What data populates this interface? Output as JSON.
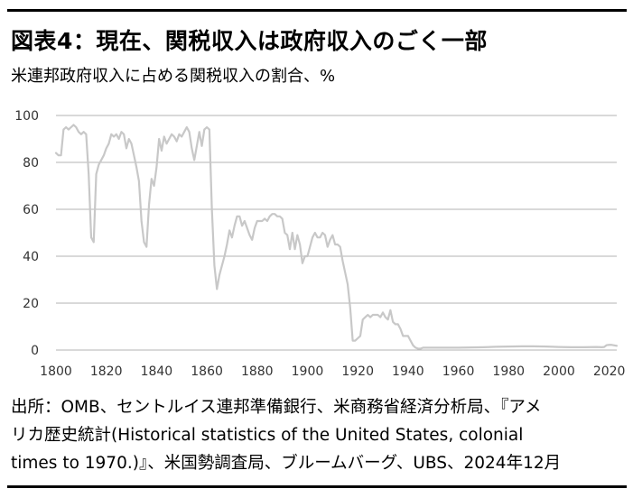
{
  "header": {
    "title": "図表4：現在、関税収入は政府収入のごく一部",
    "subtitle": "米連邦政府収入に占める関税収入の割合、%"
  },
  "footer": {
    "source_lines": [
      "出所：OMB、セントルイス連邦準備銀行、米商務省経済分析局、『アメ",
      "リカ歴史統計(Historical statistics of the United States, colonial",
      "times to 1970.)』、米国勢調査局、ブルームバーグ、UBS、2024年12月"
    ]
  },
  "colors": {
    "line": "#c8c8c8",
    "grid": "#b3b3b3",
    "axis_text": "#333333",
    "rule": "#000000"
  },
  "chart_data": {
    "type": "line",
    "title": "",
    "xlabel": "",
    "ylabel": "",
    "xlim": [
      1800,
      2023
    ],
    "ylim": [
      0,
      100
    ],
    "x_ticks": [
      1800,
      1820,
      1840,
      1860,
      1880,
      1900,
      1920,
      1940,
      1960,
      1980,
      2000,
      2020
    ],
    "y_ticks": [
      0,
      20,
      40,
      60,
      80,
      100
    ],
    "grid": true,
    "legend": "none",
    "series": [
      {
        "name": "",
        "points": [
          [
            1800,
            84
          ],
          [
            1801,
            83
          ],
          [
            1802,
            83
          ],
          [
            1803,
            94
          ],
          [
            1804,
            95
          ],
          [
            1805,
            94
          ],
          [
            1806,
            95
          ],
          [
            1807,
            96
          ],
          [
            1808,
            95
          ],
          [
            1809,
            93
          ],
          [
            1810,
            92
          ],
          [
            1811,
            93
          ],
          [
            1812,
            92
          ],
          [
            1813,
            75
          ],
          [
            1814,
            48
          ],
          [
            1815,
            46
          ],
          [
            1816,
            75
          ],
          [
            1817,
            79
          ],
          [
            1818,
            81
          ],
          [
            1819,
            83
          ],
          [
            1820,
            86
          ],
          [
            1821,
            88
          ],
          [
            1822,
            92
          ],
          [
            1823,
            91
          ],
          [
            1824,
            92
          ],
          [
            1825,
            90
          ],
          [
            1826,
            93
          ],
          [
            1827,
            92
          ],
          [
            1828,
            86
          ],
          [
            1829,
            90
          ],
          [
            1830,
            88
          ],
          [
            1831,
            83
          ],
          [
            1832,
            78
          ],
          [
            1833,
            72
          ],
          [
            1834,
            55
          ],
          [
            1835,
            46
          ],
          [
            1836,
            44
          ],
          [
            1837,
            62
          ],
          [
            1838,
            73
          ],
          [
            1839,
            70
          ],
          [
            1840,
            78
          ],
          [
            1841,
            90
          ],
          [
            1842,
            85
          ],
          [
            1843,
            91
          ],
          [
            1844,
            88
          ],
          [
            1845,
            90
          ],
          [
            1846,
            92
          ],
          [
            1847,
            91
          ],
          [
            1848,
            89
          ],
          [
            1849,
            92
          ],
          [
            1850,
            91
          ],
          [
            1851,
            93
          ],
          [
            1852,
            95
          ],
          [
            1853,
            93
          ],
          [
            1854,
            86
          ],
          [
            1855,
            81
          ],
          [
            1856,
            87
          ],
          [
            1857,
            93
          ],
          [
            1858,
            87
          ],
          [
            1859,
            94
          ],
          [
            1860,
            95
          ],
          [
            1861,
            94
          ],
          [
            1862,
            60
          ],
          [
            1863,
            36
          ],
          [
            1864,
            26
          ],
          [
            1865,
            32
          ],
          [
            1866,
            36
          ],
          [
            1867,
            40
          ],
          [
            1868,
            45
          ],
          [
            1869,
            51
          ],
          [
            1870,
            48
          ],
          [
            1871,
            53
          ],
          [
            1872,
            57
          ],
          [
            1873,
            57
          ],
          [
            1874,
            53
          ],
          [
            1875,
            55
          ],
          [
            1876,
            52
          ],
          [
            1877,
            49
          ],
          [
            1878,
            47
          ],
          [
            1879,
            52
          ],
          [
            1880,
            55
          ],
          [
            1881,
            55
          ],
          [
            1882,
            55
          ],
          [
            1883,
            56
          ],
          [
            1884,
            55
          ],
          [
            1885,
            57
          ],
          [
            1886,
            58
          ],
          [
            1887,
            58
          ],
          [
            1888,
            57
          ],
          [
            1889,
            57
          ],
          [
            1890,
            56
          ],
          [
            1891,
            50
          ],
          [
            1892,
            49
          ],
          [
            1893,
            43
          ],
          [
            1894,
            50
          ],
          [
            1895,
            43
          ],
          [
            1896,
            49
          ],
          [
            1897,
            45
          ],
          [
            1898,
            37
          ],
          [
            1899,
            40
          ],
          [
            1900,
            40
          ],
          [
            1901,
            44
          ],
          [
            1902,
            48
          ],
          [
            1903,
            50
          ],
          [
            1904,
            48
          ],
          [
            1905,
            48
          ],
          [
            1906,
            50
          ],
          [
            1907,
            49
          ],
          [
            1908,
            44
          ],
          [
            1909,
            47
          ],
          [
            1910,
            49
          ],
          [
            1911,
            45
          ],
          [
            1912,
            45
          ],
          [
            1913,
            44
          ],
          [
            1914,
            38
          ],
          [
            1915,
            33
          ],
          [
            1916,
            28
          ],
          [
            1917,
            18
          ],
          [
            1918,
            4
          ],
          [
            1919,
            4
          ],
          [
            1920,
            5
          ],
          [
            1921,
            6
          ],
          [
            1922,
            13
          ],
          [
            1923,
            14
          ],
          [
            1924,
            15
          ],
          [
            1925,
            14
          ],
          [
            1926,
            15
          ],
          [
            1927,
            15
          ],
          [
            1928,
            15
          ],
          [
            1929,
            14
          ],
          [
            1930,
            16
          ],
          [
            1931,
            14
          ],
          [
            1932,
            13
          ],
          [
            1933,
            17
          ],
          [
            1934,
            12
          ],
          [
            1935,
            11
          ],
          [
            1936,
            11
          ],
          [
            1937,
            9
          ],
          [
            1938,
            6
          ],
          [
            1939,
            6
          ],
          [
            1940,
            6
          ],
          [
            1941,
            4
          ],
          [
            1942,
            2
          ],
          [
            1943,
            1
          ],
          [
            1944,
            0.6
          ],
          [
            1945,
            0.6
          ],
          [
            1946,
            1
          ],
          [
            1947,
            1
          ],
          [
            1950,
            1
          ],
          [
            1960,
            1
          ],
          [
            1970,
            1.2
          ],
          [
            1975,
            1.4
          ],
          [
            1980,
            1.5
          ],
          [
            1985,
            1.6
          ],
          [
            1990,
            1.6
          ],
          [
            1995,
            1.5
          ],
          [
            2000,
            1.3
          ],
          [
            2005,
            1.2
          ],
          [
            2010,
            1.2
          ],
          [
            2015,
            1.3
          ],
          [
            2017,
            1.2
          ],
          [
            2018,
            1.3
          ],
          [
            2019,
            2.1
          ],
          [
            2020,
            2.2
          ],
          [
            2021,
            2.2
          ],
          [
            2022,
            2.0
          ],
          [
            2023,
            1.8
          ]
        ]
      }
    ]
  }
}
